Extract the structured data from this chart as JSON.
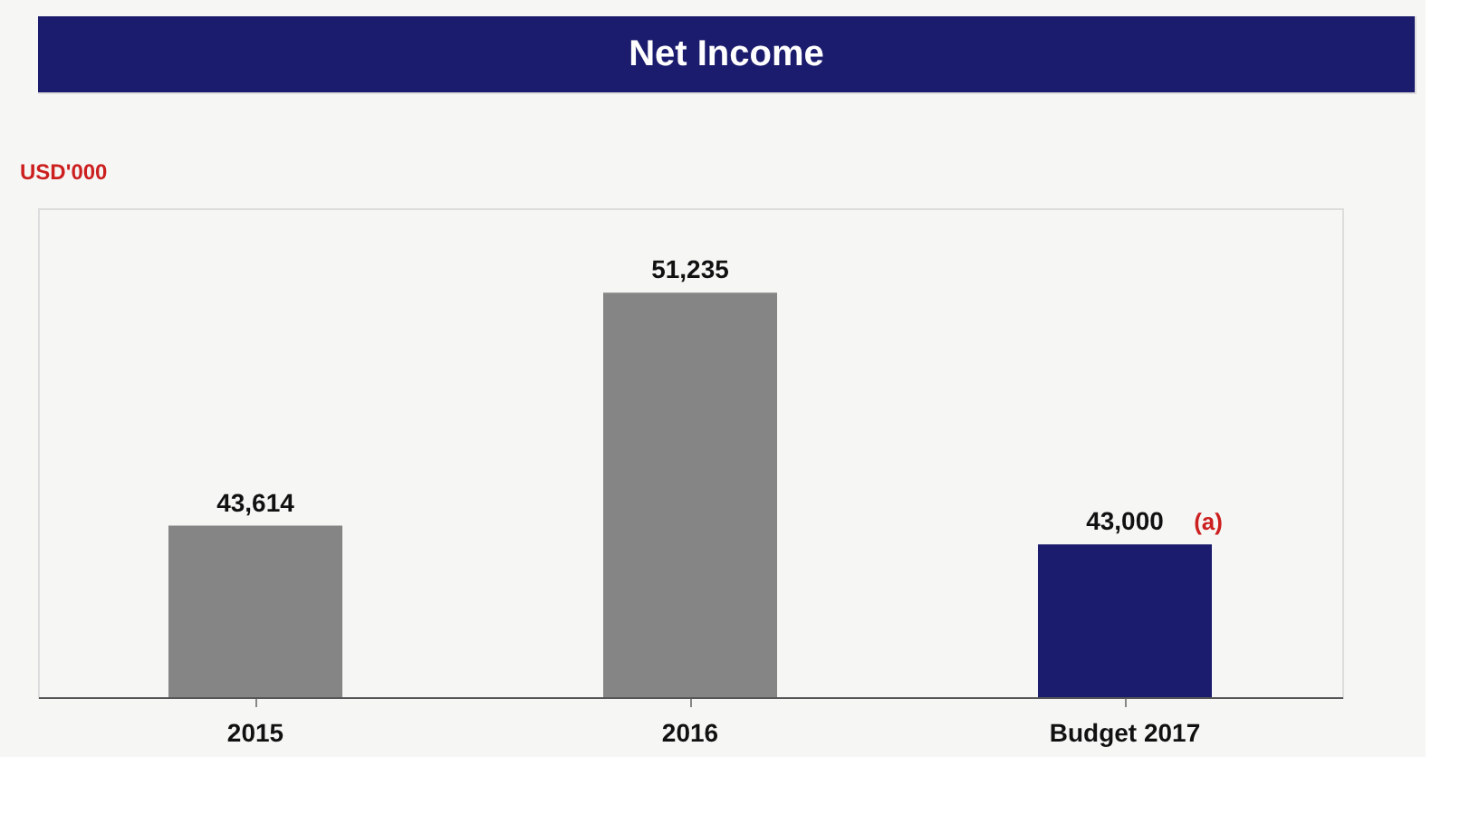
{
  "chart_data": {
    "type": "bar",
    "title": "Net Income",
    "ylabel": "USD'000",
    "categories": [
      "2015",
      "2016",
      "Budget 2017"
    ],
    "values": [
      43614,
      51235,
      43000
    ],
    "colors": [
      "#858585",
      "#858585",
      "#1c1c6e"
    ],
    "value_labels": [
      "43,614",
      "51,235",
      "43,000"
    ],
    "data_labels": true,
    "ylim": [
      38000,
      54000
    ],
    "grid": false,
    "annotations": [
      {
        "text": "(a)",
        "x": "Budget 2017",
        "y": 43000
      }
    ]
  }
}
